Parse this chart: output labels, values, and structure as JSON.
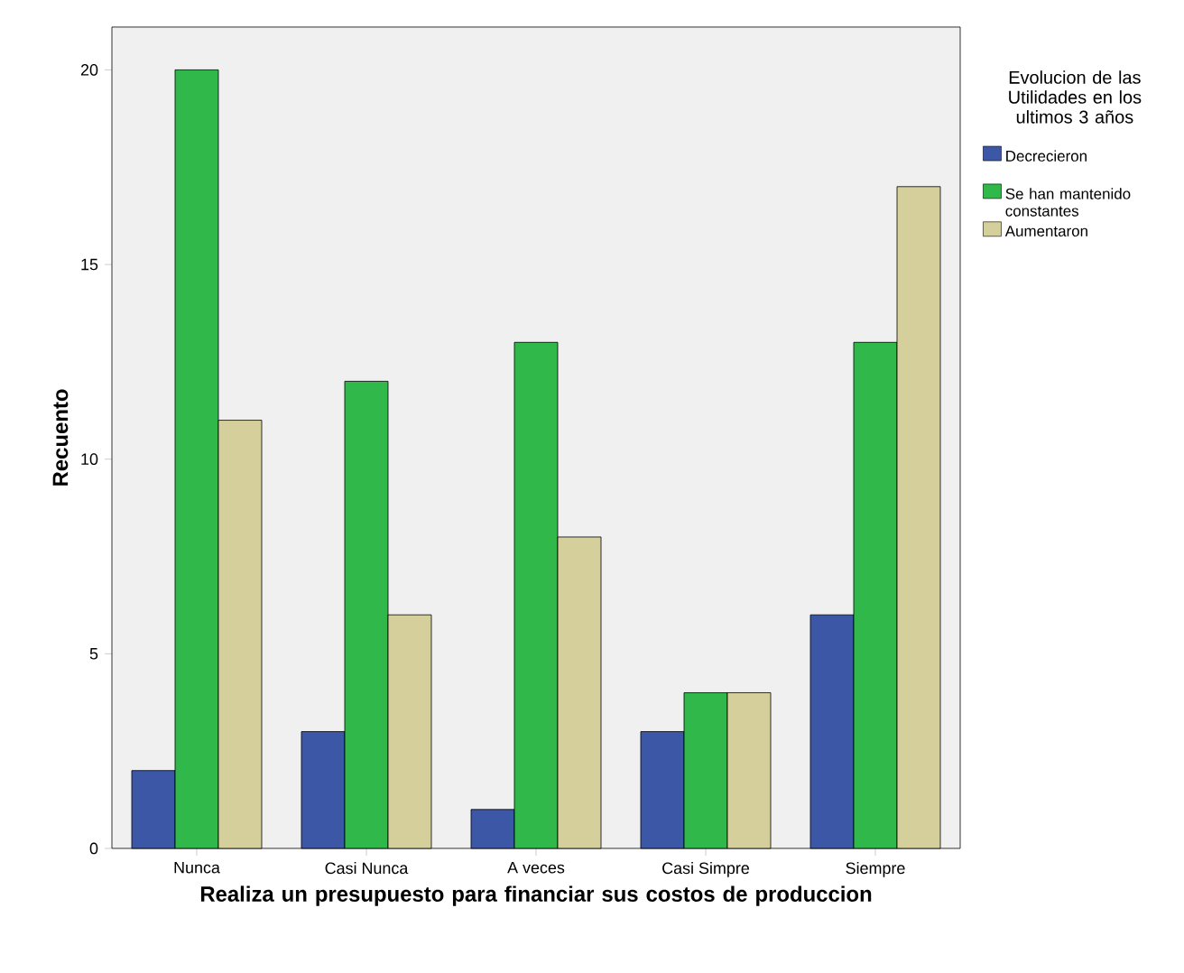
{
  "chart_data": {
    "type": "bar",
    "xlabel": "Realiza un presupuesto para financiar sus costos de produccion",
    "ylabel": "Recuento",
    "legend_title": "Evolucion de las Utilidades en los ultimos 3 años",
    "categories": [
      "Nunca",
      "Casi Nunca",
      "A veces",
      "Casi Simpre",
      "Siempre"
    ],
    "series": [
      {
        "name": "Decrecieron",
        "color": "#3d57a7",
        "values": [
          2,
          3,
          1,
          3,
          6
        ]
      },
      {
        "name": "Se han mantenido constantes",
        "color": "#30b94a",
        "values": [
          20,
          12,
          13,
          4,
          13
        ]
      },
      {
        "name": "Aumentaron",
        "color": "#d5d09b",
        "values": [
          11,
          6,
          8,
          4,
          17
        ]
      }
    ],
    "ylim": [
      0,
      21.1
    ],
    "yticks": [
      0,
      5,
      10,
      15,
      20
    ],
    "legend": "right",
    "grid": false
  }
}
